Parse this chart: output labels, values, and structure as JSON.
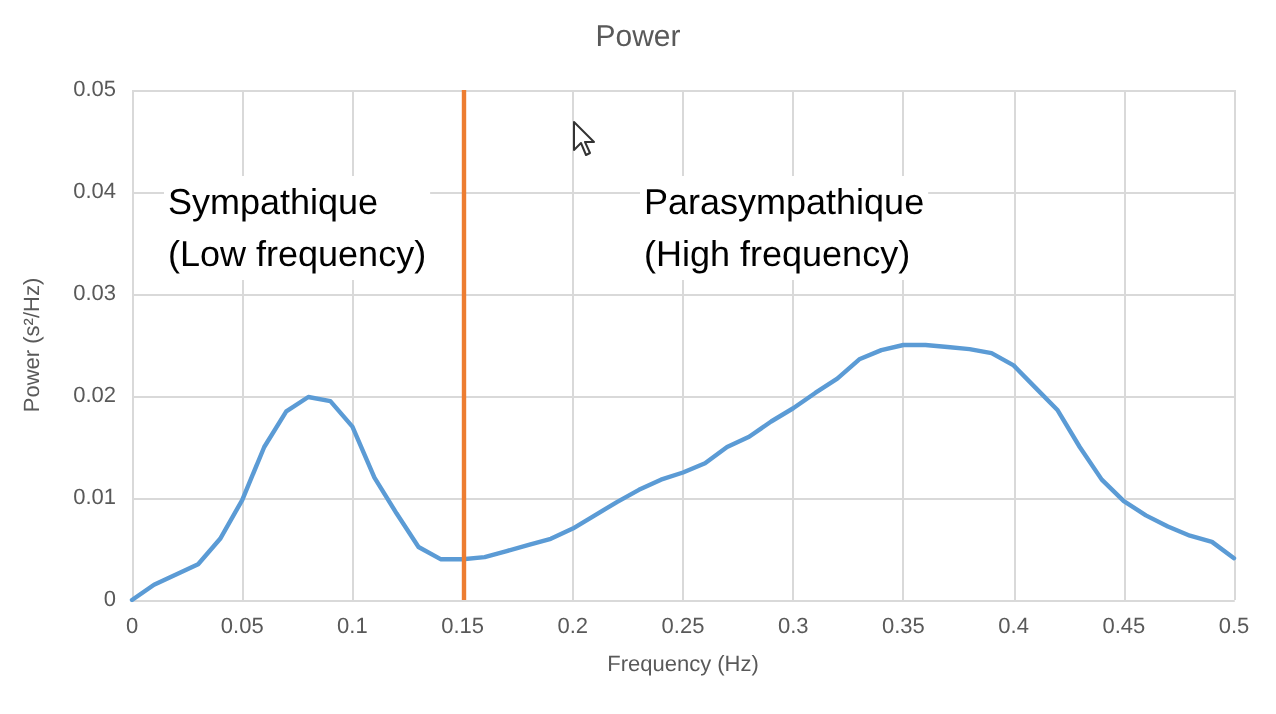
{
  "chart_data": {
    "type": "line",
    "title": "Power",
    "xlabel": "Frequency (Hz)",
    "ylabel": "Power (s²/Hz)",
    "x": [
      0,
      0.01,
      0.02,
      0.03,
      0.04,
      0.05,
      0.06,
      0.07,
      0.08,
      0.09,
      0.1,
      0.11,
      0.12,
      0.13,
      0.14,
      0.15,
      0.16,
      0.17,
      0.18,
      0.19,
      0.2,
      0.21,
      0.22,
      0.23,
      0.24,
      0.25,
      0.26,
      0.27,
      0.28,
      0.29,
      0.3,
      0.31,
      0.32,
      0.33,
      0.34,
      0.35,
      0.36,
      0.37,
      0.38,
      0.39,
      0.4,
      0.41,
      0.42,
      0.43,
      0.44,
      0.45,
      0.46,
      0.47,
      0.48,
      0.49,
      0.5
    ],
    "series": [
      {
        "color": "#5b9bd5",
        "values": [
          0,
          0.0015,
          0.0025,
          0.0035,
          0.006,
          0.0098,
          0.015,
          0.0185,
          0.0199,
          0.0195,
          0.017,
          0.012,
          0.0085,
          0.0052,
          0.004,
          0.004,
          0.0042,
          0.0048,
          0.0054,
          0.006,
          0.007,
          0.0083,
          0.0096,
          0.0108,
          0.0118,
          0.0125,
          0.0134,
          0.015,
          0.016,
          0.0175,
          0.0188,
          0.0203,
          0.0217,
          0.0236,
          0.0245,
          0.025,
          0.025,
          0.0248,
          0.0246,
          0.0242,
          0.023,
          0.0208,
          0.0186,
          0.015,
          0.0118,
          0.0097,
          0.0083,
          0.0072,
          0.0063,
          0.0057,
          0.0041
        ]
      }
    ],
    "xlim": [
      0,
      0.5
    ],
    "xticks": [
      0,
      0.05,
      0.1,
      0.15,
      0.2,
      0.25,
      0.3,
      0.35,
      0.4,
      0.45,
      0.5
    ],
    "ylim": [
      0,
      0.05
    ],
    "yticks": [
      0,
      0.01,
      0.02,
      0.03,
      0.04,
      0.05
    ],
    "ref_lines": [
      {
        "axis": "x",
        "value": 0.15,
        "color": "#ed7d31"
      }
    ],
    "annotations": [
      "Sympathique\n(Low frequency)",
      "Parasympathique\n(High frequency)"
    ],
    "grid": true,
    "marker": "none",
    "line_style": "solid"
  }
}
